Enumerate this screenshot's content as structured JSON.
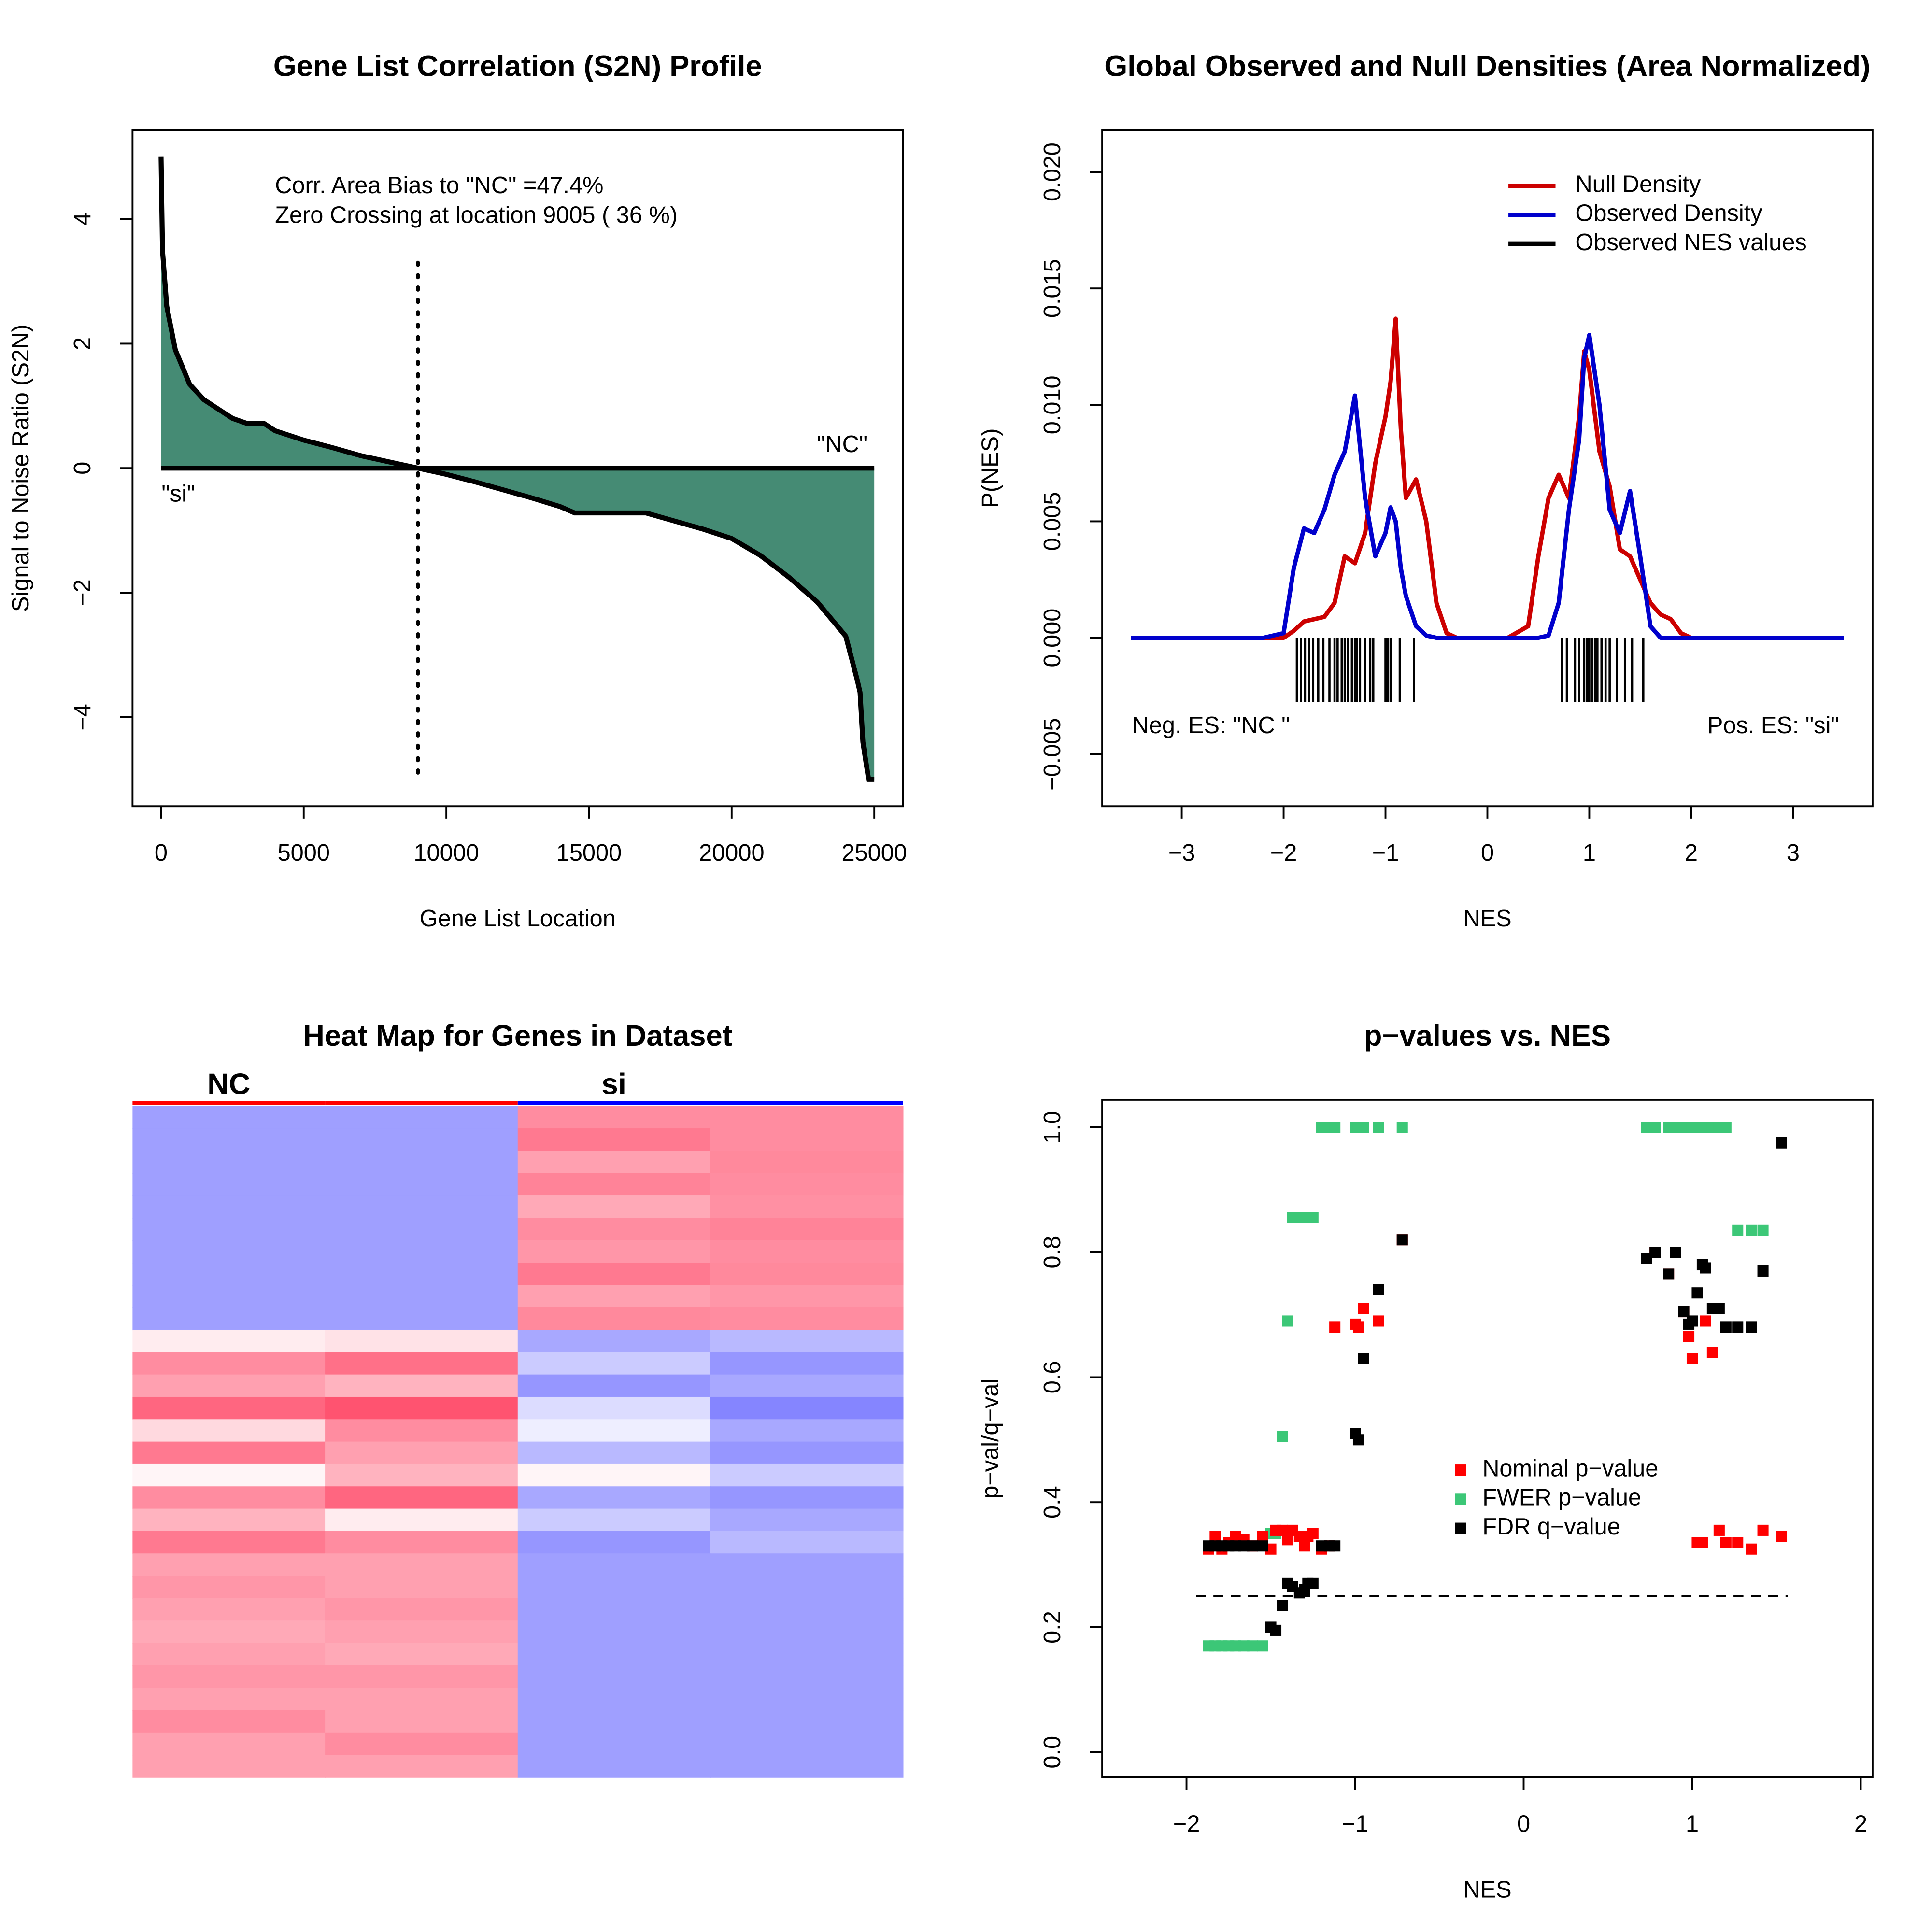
{
  "chart_data": [
    {
      "type": "area",
      "title": "Gene List Correlation (S2N) Profile",
      "xlabel": "Gene List Location",
      "ylabel": "Signal to Noise Ratio (S2N)",
      "annotations": [
        "Corr. Area Bias to \"NC\" =47.4%",
        "Zero Crossing at location  9005  ( 36  %)",
        "\"NC\"",
        "\"si\""
      ],
      "x": [
        0,
        50,
        200,
        500,
        1000,
        1500,
        2000,
        2500,
        3000,
        3600,
        4000,
        5000,
        6000,
        7000,
        8000,
        9005,
        10000,
        11000,
        12000,
        13000,
        14000,
        14500,
        17000,
        18000,
        19000,
        20000,
        21000,
        22000,
        23000,
        24000,
        24400,
        24500,
        24600,
        24800,
        25000
      ],
      "values": [
        5.0,
        3.5,
        2.6,
        1.9,
        1.35,
        1.1,
        0.95,
        0.8,
        0.72,
        0.72,
        0.6,
        0.45,
        0.33,
        0.2,
        0.1,
        0,
        -0.1,
        -0.22,
        -0.35,
        -0.48,
        -0.62,
        -0.72,
        -0.72,
        -0.85,
        -0.98,
        -1.13,
        -1.4,
        -1.75,
        -2.15,
        -2.7,
        -3.4,
        -3.6,
        -4.4,
        -5.0,
        -5.0
      ],
      "color": "#458b74",
      "line_color": "#000000",
      "vline": 9005,
      "xlim": [
        -1000,
        26000
      ],
      "xticks": [
        0,
        5000,
        10000,
        15000,
        20000,
        25000
      ],
      "ylim": [
        -5.43,
        5.43
      ],
      "yticks": [
        {
          "value": -4,
          "label": "−4"
        },
        {
          "value": -2,
          "label": "−2"
        },
        0,
        2,
        4
      ]
    },
    {
      "type": "line",
      "title": "Global Observed and Null Densities (Area Normalized)",
      "xlabel": "NES",
      "ylabel": "P(NES)",
      "annotations": [
        "Neg. ES: \"NC \"",
        "Pos. ES: \"si\""
      ],
      "legend": "top-right",
      "x": [
        -3.5,
        -2.2,
        -2.0,
        -1.9,
        -1.8,
        -1.7,
        -1.6,
        -1.5,
        -1.4,
        -1.3,
        -1.2,
        -1.1,
        -1.0,
        -0.95,
        -0.9,
        -0.85,
        -0.8,
        -0.7,
        -0.6,
        -0.5,
        -0.4,
        -0.3,
        -0.2,
        0.2,
        0.4,
        0.5,
        0.6,
        0.7,
        0.8,
        0.9,
        0.95,
        1.0,
        1.1,
        1.2,
        1.3,
        1.4,
        1.5,
        1.6,
        1.7,
        1.8,
        1.9,
        2.0,
        3.5
      ],
      "series": [
        {
          "name": "Null Density",
          "color": "#cc0000",
          "values": [
            0,
            0,
            0,
            0.0003,
            0.0007,
            0.0008,
            0.0009,
            0.0015,
            0.0035,
            0.0032,
            0.0045,
            0.0075,
            0.0095,
            0.011,
            0.0137,
            0.009,
            0.006,
            0.0068,
            0.005,
            0.0015,
            0.0002,
            0,
            0,
            0,
            0.0005,
            0.0035,
            0.006,
            0.007,
            0.006,
            0.0095,
            0.0123,
            0.0115,
            0.008,
            0.0065,
            0.0038,
            0.0035,
            0.0025,
            0.0015,
            0.001,
            0.0008,
            0.0002,
            0,
            0
          ]
        },
        {
          "name": "Observed Density",
          "color": "#0000cc",
          "values": [
            0,
            0,
            0.0002,
            0.003,
            0.0047,
            0.0045,
            0.0055,
            0.007,
            0.008,
            0.0104,
            0.006,
            0.0035,
            0.0045,
            0.0056,
            0.005,
            0.003,
            0.0018,
            0.0005,
            0.0001,
            0,
            0,
            0,
            0,
            0,
            0,
            0,
            0.0001,
            0.0015,
            0.0055,
            0.0085,
            0.012,
            0.013,
            0.01,
            0.0055,
            0.0045,
            0.0063,
            0.0035,
            0.0005,
            0,
            0,
            0,
            0,
            0
          ]
        }
      ],
      "rug": {
        "name": "Observed NES values",
        "color": "#000000",
        "values": [
          -1.87,
          -1.83,
          -1.79,
          -1.75,
          -1.71,
          -1.66,
          -1.61,
          -1.55,
          -1.5,
          -1.47,
          -1.43,
          -1.4,
          -1.37,
          -1.33,
          -1.3,
          -1.28,
          -1.25,
          -1.2,
          -1.15,
          -1.12,
          -1.0,
          -0.98,
          -0.95,
          -0.86,
          -0.72,
          0.73,
          0.78,
          0.86,
          0.9,
          0.95,
          0.98,
          1.0,
          1.03,
          1.06,
          1.08,
          1.12,
          1.16,
          1.2,
          1.27,
          1.35,
          1.42,
          1.53
        ]
      },
      "xlim": [
        -3.78,
        3.78
      ],
      "xticks": [
        {
          "value": -3,
          "label": "−3"
        },
        {
          "value": -2,
          "label": "−2"
        },
        {
          "value": -1,
          "label": "−1"
        },
        0,
        1,
        2,
        3
      ],
      "ylim": [
        -0.00723,
        0.0218
      ],
      "yticks": [
        {
          "value": -0.005,
          "label": "−0.005"
        },
        {
          "value": 0,
          "label": "0.000"
        },
        {
          "value": 0.005,
          "label": "0.005"
        },
        {
          "value": 0.01,
          "label": "0.010"
        },
        {
          "value": 0.015,
          "label": "0.015"
        },
        {
          "value": 0.02,
          "label": "0.020"
        }
      ]
    },
    {
      "type": "heatmap",
      "title": "Heat Map for Genes in Dataset",
      "column_groups": [
        "NC",
        "NC",
        "si",
        "si"
      ],
      "group_colors": [
        "#ff0000",
        "#ff0000",
        "#0000ff",
        "#0000ff"
      ],
      "zlim": [
        -1,
        1
      ],
      "low_color": "#5050ff",
      "mid_color": "#ffffff",
      "high_color": "#ff4060",
      "rows": [
        [
          -0.55,
          -0.55,
          0.6,
          0.6
        ],
        [
          -0.55,
          -0.55,
          0.7,
          0.6
        ],
        [
          -0.55,
          -0.55,
          0.5,
          0.62
        ],
        [
          -0.55,
          -0.55,
          0.65,
          0.6
        ],
        [
          -0.55,
          -0.55,
          0.45,
          0.58
        ],
        [
          -0.55,
          -0.55,
          0.6,
          0.65
        ],
        [
          -0.55,
          -0.55,
          0.55,
          0.6
        ],
        [
          -0.55,
          -0.55,
          0.7,
          0.62
        ],
        [
          -0.55,
          -0.55,
          0.5,
          0.55
        ],
        [
          -0.55,
          -0.55,
          0.62,
          0.6
        ],
        [
          0.1,
          0.15,
          -0.5,
          -0.4
        ],
        [
          0.6,
          0.75,
          -0.3,
          -0.6
        ],
        [
          0.5,
          0.4,
          -0.6,
          -0.5
        ],
        [
          0.8,
          0.9,
          -0.2,
          -0.7
        ],
        [
          0.2,
          0.6,
          -0.1,
          -0.5
        ],
        [
          0.7,
          0.5,
          -0.4,
          -0.6
        ],
        [
          0.05,
          0.4,
          0.05,
          -0.3
        ],
        [
          0.6,
          0.8,
          -0.5,
          -0.6
        ],
        [
          0.4,
          0.1,
          -0.3,
          -0.5
        ],
        [
          0.7,
          0.6,
          -0.6,
          -0.4
        ],
        [
          0.5,
          0.5,
          -0.55,
          -0.55
        ],
        [
          0.55,
          0.5,
          -0.55,
          -0.55
        ],
        [
          0.5,
          0.55,
          -0.55,
          -0.55
        ],
        [
          0.45,
          0.5,
          -0.55,
          -0.55
        ],
        [
          0.5,
          0.45,
          -0.55,
          -0.55
        ],
        [
          0.55,
          0.55,
          -0.55,
          -0.55
        ],
        [
          0.5,
          0.5,
          -0.55,
          -0.55
        ],
        [
          0.6,
          0.5,
          -0.55,
          -0.55
        ],
        [
          0.5,
          0.6,
          -0.55,
          -0.55
        ],
        [
          0.5,
          0.5,
          -0.55,
          -0.55
        ]
      ]
    },
    {
      "type": "scatter",
      "title": "p−values vs. NES",
      "xlabel": "NES",
      "ylabel": "p−val/q−val",
      "legend": "right",
      "hline": 0.25,
      "x": [
        -1.87,
        -1.83,
        -1.79,
        -1.75,
        -1.71,
        -1.66,
        -1.61,
        -1.55,
        -1.5,
        -1.47,
        -1.43,
        -1.4,
        -1.37,
        -1.33,
        -1.3,
        -1.28,
        -1.25,
        -1.2,
        -1.15,
        -1.12,
        -1.0,
        -0.98,
        -0.95,
        -0.86,
        -0.72,
        0.73,
        0.78,
        0.86,
        0.9,
        0.95,
        0.98,
        1.0,
        1.03,
        1.06,
        1.08,
        1.12,
        1.16,
        1.2,
        1.27,
        1.35,
        1.42,
        1.53
      ],
      "series": [
        {
          "name": "Nominal p−value",
          "color": "#ff0000",
          "values": [
            0.325,
            0.345,
            0.325,
            0.335,
            0.345,
            0.34,
            0.33,
            0.345,
            0.325,
            0.355,
            0.355,
            0.34,
            0.355,
            0.345,
            0.33,
            0.345,
            0.35,
            0.325,
            0.33,
            0.68,
            0.685,
            0.68,
            0.71,
            0.69,
            0.82,
            0.79,
            0.8,
            0.765,
            0.8,
            0.705,
            0.665,
            0.63,
            0.335,
            0.335,
            0.69,
            0.64,
            0.355,
            0.335,
            0.335,
            0.325,
            0.355,
            0.345
          ]
        },
        {
          "name": "FWER p−value",
          "color": "#3cc777",
          "values": [
            0.17,
            0.17,
            0.17,
            0.17,
            0.17,
            0.17,
            0.17,
            0.17,
            0.35,
            0.35,
            0.505,
            0.69,
            0.855,
            0.855,
            0.855,
            0.855,
            0.855,
            1,
            1,
            1,
            1,
            1,
            1,
            1,
            1,
            1,
            1,
            1,
            1,
            1,
            1,
            1,
            1,
            1,
            1,
            1,
            1,
            1,
            0.835,
            0.835,
            0.835,
            0.345
          ]
        },
        {
          "name": "FDR q−value",
          "color": "#000000",
          "values": [
            0.33,
            0.33,
            0.33,
            0.33,
            0.33,
            0.33,
            0.33,
            0.33,
            0.2,
            0.195,
            0.235,
            0.27,
            0.265,
            0.255,
            0.26,
            0.27,
            0.27,
            0.33,
            0.33,
            0.33,
            0.51,
            0.5,
            0.63,
            0.74,
            0.82,
            0.79,
            0.8,
            0.765,
            0.8,
            0.705,
            0.685,
            0.69,
            0.735,
            0.78,
            0.775,
            0.71,
            0.71,
            0.68,
            0.68,
            0.68,
            0.77,
            0.975
          ]
        }
      ],
      "xlim": [
        -2.5,
        2.07
      ],
      "xticks": [
        {
          "value": -2,
          "label": "−2"
        },
        {
          "value": -1,
          "label": "−1"
        },
        0,
        1,
        2
      ],
      "ylim": [
        -0.04,
        1.044
      ],
      "yticks": [
        {
          "value": 0,
          "label": "0.0"
        },
        {
          "value": 0.2,
          "label": "0.2"
        },
        {
          "value": 0.4,
          "label": "0.4"
        },
        {
          "value": 0.6,
          "label": "0.6"
        },
        {
          "value": 0.8,
          "label": "0.8"
        },
        {
          "value": 1,
          "label": "1.0"
        }
      ]
    }
  ]
}
